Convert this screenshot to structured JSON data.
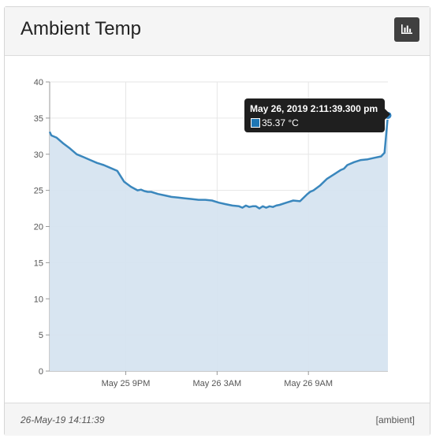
{
  "panel": {
    "title": "Ambient Temp",
    "chart_button_icon": "bar-chart-icon"
  },
  "footer": {
    "timestamp": "26-May-19 14:11:39",
    "tag": "[ambient]"
  },
  "tooltip": {
    "title": "May 26, 2019 2:11:39.300 pm",
    "value": "35.37 °C"
  },
  "colors": {
    "line": "#3a87bd",
    "fill": "#d6e4f0",
    "point": "#2f80c0"
  },
  "chart_data": {
    "type": "area",
    "title": "",
    "xlabel": "",
    "ylabel": "",
    "ylim": [
      0,
      40
    ],
    "yticks": [
      "0",
      "5",
      "10",
      "15",
      "20",
      "25",
      "30",
      "35",
      "40"
    ],
    "xticks": [
      {
        "label": "May 25 9PM",
        "pos": 0.225
      },
      {
        "label": "May 26 3AM",
        "pos": 0.495
      },
      {
        "label": "May 26 9AM",
        "pos": 0.765
      }
    ],
    "grid": true,
    "series": [
      {
        "x": [
          0,
          0.005,
          0.02,
          0.04,
          0.06,
          0.08,
          0.1,
          0.12,
          0.14,
          0.16,
          0.18,
          0.2,
          0.22,
          0.24,
          0.26,
          0.27,
          0.28,
          0.29,
          0.3,
          0.32,
          0.34,
          0.36,
          0.38,
          0.4,
          0.42,
          0.44,
          0.46,
          0.48,
          0.5,
          0.52,
          0.54,
          0.56,
          0.57,
          0.58,
          0.59,
          0.6,
          0.61,
          0.62,
          0.63,
          0.64,
          0.65,
          0.66,
          0.67,
          0.68,
          0.7,
          0.72,
          0.74,
          0.76,
          0.77,
          0.78,
          0.8,
          0.82,
          0.84,
          0.86,
          0.87,
          0.88,
          0.9,
          0.92,
          0.94,
          0.96,
          0.98,
          0.99,
          1.0
        ],
        "y": [
          33.1,
          32.6,
          32.3,
          31.5,
          30.8,
          30.0,
          29.6,
          29.2,
          28.8,
          28.5,
          28.1,
          27.7,
          26.2,
          25.5,
          25.0,
          25.1,
          24.9,
          24.8,
          24.8,
          24.5,
          24.3,
          24.1,
          24.0,
          23.9,
          23.8,
          23.7,
          23.7,
          23.6,
          23.3,
          23.1,
          22.9,
          22.8,
          22.6,
          22.9,
          22.7,
          22.8,
          22.8,
          22.5,
          22.8,
          22.6,
          22.8,
          22.7,
          22.9,
          23.0,
          23.3,
          23.6,
          23.5,
          24.4,
          24.8,
          25.0,
          25.7,
          26.6,
          27.2,
          27.8,
          28.0,
          28.5,
          28.9,
          29.2,
          29.3,
          29.5,
          29.7,
          30.2,
          35.37
        ]
      }
    ]
  }
}
